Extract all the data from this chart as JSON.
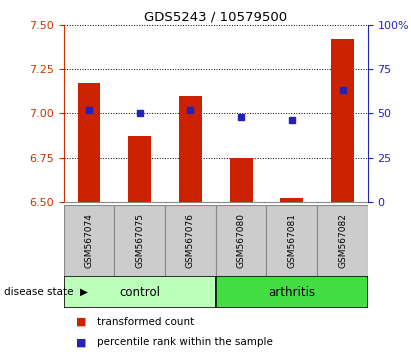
{
  "title": "GDS5243 / 10579500",
  "samples": [
    "GSM567074",
    "GSM567075",
    "GSM567076",
    "GSM567080",
    "GSM567081",
    "GSM567082"
  ],
  "transformed_count": [
    7.17,
    6.87,
    7.1,
    6.75,
    6.52,
    7.42
  ],
  "percentile_rank": [
    52,
    50,
    52,
    48,
    46,
    63
  ],
  "ylim_left": [
    6.5,
    7.5
  ],
  "ylim_right": [
    0,
    100
  ],
  "yticks_left": [
    6.5,
    6.75,
    7.0,
    7.25,
    7.5
  ],
  "yticks_right": [
    0,
    25,
    50,
    75,
    100
  ],
  "bar_color": "#CC2200",
  "dot_color": "#2222BB",
  "bar_bottom": 6.5,
  "control_color": "#BBFFBB",
  "arthritis_color": "#44DD44",
  "label_bg_color": "#CCCCCC",
  "legend_bar": "transformed count",
  "legend_dot": "percentile rank within the sample",
  "left_axis_color": "#CC3300",
  "right_axis_color": "#2222BB",
  "bar_width": 0.45
}
